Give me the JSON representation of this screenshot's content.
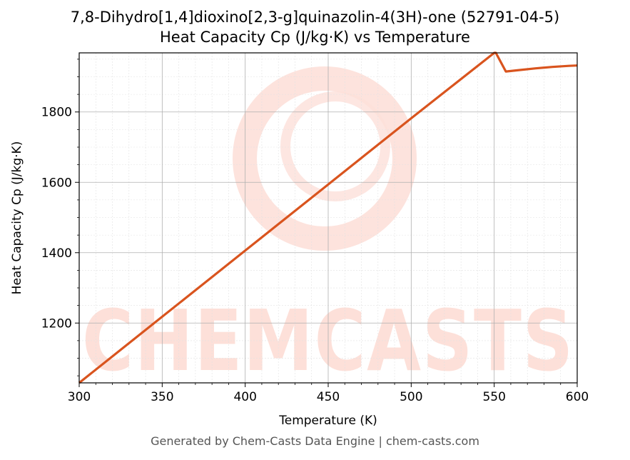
{
  "chart_data": {
    "type": "line",
    "title": "7,8-Dihydro[1,4]dioxino[2,3-g]quinazolin-4(3H)-one (52791-04-5)",
    "subtitle": "Heat Capacity Cp (J/kg·K) vs Temperature",
    "xlabel": "Temperature (K)",
    "ylabel": "Heat Capacity Cp (J/kg·K)",
    "xlim": [
      300,
      600
    ],
    "ylim": [
      1030,
      1968
    ],
    "xticks": [
      300,
      350,
      400,
      450,
      500,
      550,
      600
    ],
    "yticks": [
      1200,
      1400,
      1600,
      1800
    ],
    "grid": true,
    "line_color": "#d9541e",
    "series": [
      {
        "x": [
          300,
          350,
          400,
          450,
          500,
          550,
          551,
          557,
          565,
          575,
          585,
          595,
          600
        ],
        "y": [
          1030,
          1218,
          1406,
          1594,
          1782,
          1968,
          1968,
          1915,
          1919,
          1924,
          1928,
          1931,
          1932
        ]
      }
    ]
  },
  "watermark": "CHEMCASTS",
  "footer": "Generated by Chem-Casts Data Engine | chem-casts.com"
}
